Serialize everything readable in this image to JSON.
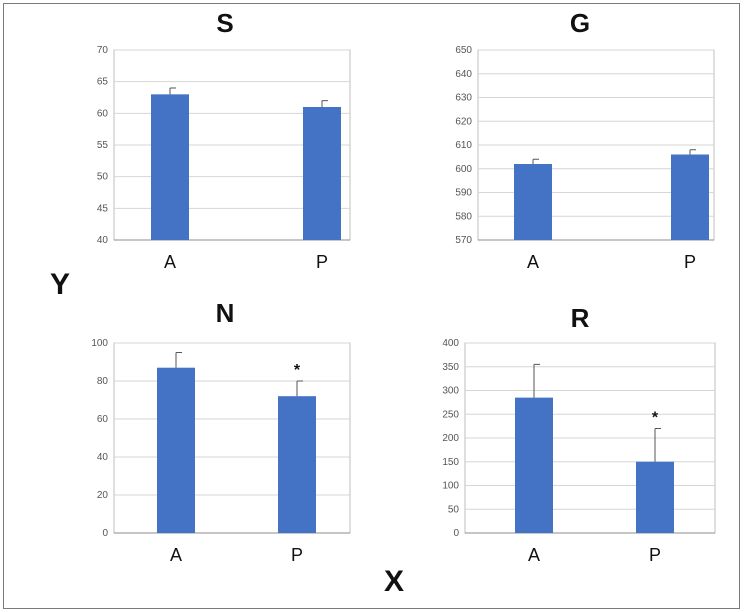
{
  "figure": {
    "y_letter": "Y",
    "x_letter": "X",
    "colors": {
      "bar": "#4472C4",
      "grid": "#d6d6d6",
      "tick_text": "#555555",
      "category_text": "#111111"
    }
  },
  "chart_data": [
    {
      "type": "bar",
      "title": "S",
      "categories": [
        "A",
        "P"
      ],
      "values": [
        63,
        61
      ],
      "errors": [
        1,
        1
      ],
      "significance": [
        "",
        ""
      ],
      "ylim": [
        40,
        70
      ],
      "yticks": [
        40,
        45,
        50,
        55,
        60,
        65,
        70
      ],
      "ytick_labels": [
        "40",
        "45",
        "50",
        "55",
        "60",
        "65",
        "70"
      ],
      "grid": true
    },
    {
      "type": "bar",
      "title": "G",
      "categories": [
        "A",
        "P"
      ],
      "values": [
        602,
        606
      ],
      "errors": [
        2,
        2
      ],
      "significance": [
        "",
        ""
      ],
      "ylim": [
        570,
        650
      ],
      "yticks": [
        570,
        580,
        590,
        600,
        610,
        620,
        630,
        640,
        650
      ],
      "ytick_labels": [
        "570",
        "580",
        "590",
        "600",
        "610",
        "620",
        "630",
        "640",
        "650"
      ],
      "grid": true
    },
    {
      "type": "bar",
      "title": "N",
      "categories": [
        "A",
        "P"
      ],
      "values": [
        87,
        72
      ],
      "errors": [
        8,
        8
      ],
      "significance": [
        "",
        "*"
      ],
      "ylim": [
        0,
        100
      ],
      "yticks": [
        0,
        20,
        40,
        60,
        80,
        100
      ],
      "ytick_labels": [
        "0",
        "20",
        "40",
        "60",
        "80",
        "100"
      ],
      "grid": true
    },
    {
      "type": "bar",
      "title": "R",
      "categories": [
        "A",
        "P"
      ],
      "values": [
        285,
        150
      ],
      "errors": [
        70,
        70
      ],
      "significance": [
        "",
        "*"
      ],
      "ylim": [
        0,
        400
      ],
      "yticks": [
        0,
        50,
        100,
        150,
        200,
        250,
        300,
        350,
        400
      ],
      "ytick_labels": [
        "0",
        "50",
        "100",
        "150",
        "200",
        "250",
        "300",
        "350",
        "400"
      ],
      "grid": true
    }
  ]
}
